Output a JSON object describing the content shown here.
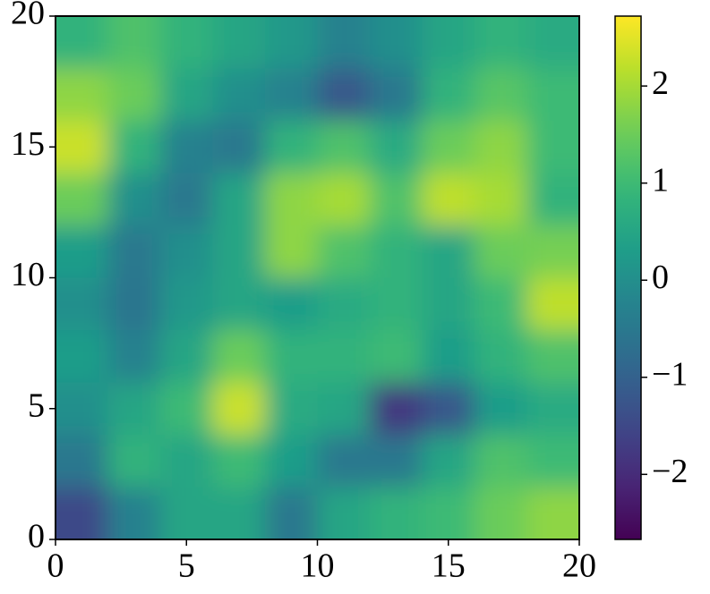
{
  "chart_data": {
    "type": "heatmap",
    "colormap": "viridis",
    "xlim": [
      0,
      20
    ],
    "ylim": [
      0,
      20
    ],
    "xticks": [
      0,
      5,
      10,
      15,
      20
    ],
    "yticks": [
      0,
      5,
      10,
      15,
      20
    ],
    "clim": [
      -2.67,
      2.72
    ],
    "cticks": [
      {
        "value": -2,
        "label": "−2"
      },
      {
        "value": -1,
        "label": "−1"
      },
      0,
      1,
      2
    ],
    "z": [
      [
        0.8,
        1.2,
        0.8,
        0.5,
        0.2,
        -0.3,
        0,
        0.5,
        0.8,
        0.6
      ],
      [
        1.8,
        1.5,
        0.5,
        0,
        -0.3,
        -1.2,
        -0.5,
        0.8,
        1.3,
        1.0
      ],
      [
        2.3,
        0.8,
        -0.3,
        -0.5,
        0.8,
        1.2,
        0.6,
        1.5,
        1.8,
        1.0
      ],
      [
        1.5,
        0,
        -0.5,
        0.5,
        1.8,
        2.0,
        1.2,
        2.2,
        2.0,
        0.8
      ],
      [
        0.3,
        -0.5,
        0,
        0.5,
        1.8,
        1.2,
        0.8,
        0.5,
        1.5,
        1.6
      ],
      [
        0,
        -0.6,
        0.2,
        0.5,
        0.3,
        0.6,
        0.8,
        0.5,
        1.0,
        2.2
      ],
      [
        0.3,
        -0.3,
        0.5,
        1.5,
        0.8,
        0.8,
        1.0,
        0.3,
        0.8,
        1.2
      ],
      [
        0,
        0.5,
        1.0,
        2.3,
        0.6,
        0.5,
        -1.8,
        -1.2,
        0.3,
        0.6
      ],
      [
        -0.5,
        0.8,
        0.5,
        1.0,
        0.3,
        -0.5,
        -0.5,
        0.5,
        1.2,
        1.0
      ],
      [
        -1.5,
        -0.3,
        0.5,
        0.5,
        -0.5,
        0.5,
        0.8,
        1.0,
        1.5,
        1.8
      ]
    ]
  }
}
